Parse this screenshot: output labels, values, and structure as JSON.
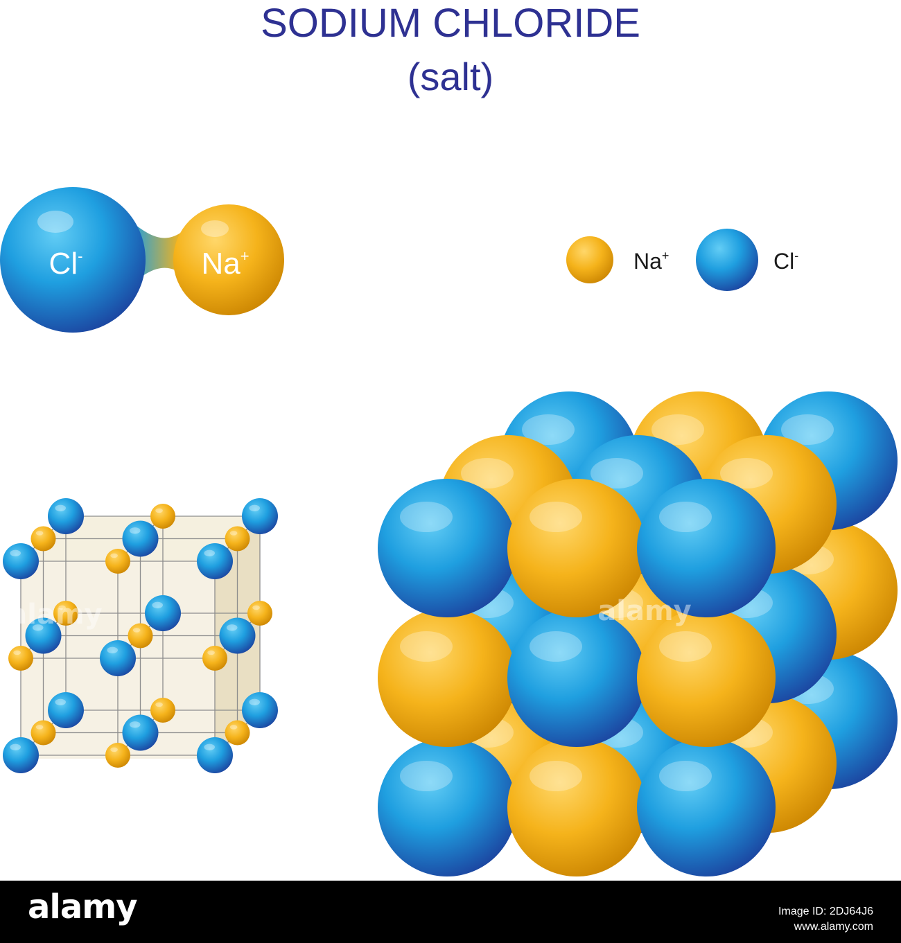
{
  "title": "SODIUM CHLORIDE",
  "subtitle": "(salt)",
  "molecule": {
    "cl_label": "Cl",
    "cl_charge": "-",
    "na_label": "Na",
    "na_charge": "+"
  },
  "legend": {
    "na_label": "Na",
    "na_charge": "+",
    "cl_label": "Cl",
    "cl_charge": "-"
  },
  "watermark": "alamy",
  "footer": {
    "logo": "alamy",
    "id_line1": "Image ID: 2DJ64J6",
    "id_line2": "www.alamy.com"
  },
  "colors": {
    "title": "#2e3192",
    "na": "#f5b31b",
    "na_dark": "#d08a00",
    "cl": "#1f9fe0",
    "cl_dark": "#1b3f9c",
    "footer_bg": "#000000",
    "cube_fill": "#f1e9d2",
    "cube_line": "#8d8d8d"
  }
}
